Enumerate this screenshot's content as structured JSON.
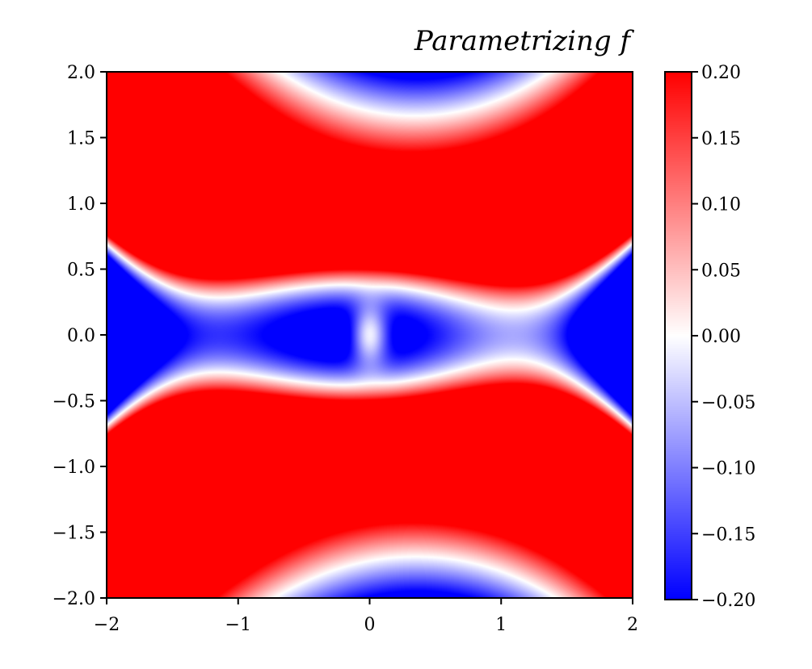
{
  "chart_data": {
    "type": "heatmap",
    "title": "Parametrizing f",
    "xlabel": "",
    "ylabel": "",
    "xlim": [
      -2,
      2
    ],
    "ylim": [
      -2,
      2
    ],
    "colormap": "bwr",
    "colors": {
      "low": "#0000ff",
      "mid": "#ffffff",
      "high": "#ff0000"
    },
    "color_range": [
      -0.2,
      0.2
    ],
    "grid": false,
    "x_ticks": [
      {
        "value": -2,
        "label": "−2"
      },
      {
        "value": -1,
        "label": "−1"
      },
      {
        "value": 0,
        "label": "0"
      },
      {
        "value": 1,
        "label": "1"
      },
      {
        "value": 2,
        "label": "2"
      }
    ],
    "y_ticks": [
      {
        "value": 2.0,
        "label": "2.0"
      },
      {
        "value": 1.5,
        "label": "1.5"
      },
      {
        "value": 1.0,
        "label": "1.0"
      },
      {
        "value": 0.5,
        "label": "0.5"
      },
      {
        "value": 0.0,
        "label": "0.0"
      },
      {
        "value": -0.5,
        "label": "−0.5"
      },
      {
        "value": -1.0,
        "label": "−1.0"
      },
      {
        "value": -1.5,
        "label": "−1.5"
      },
      {
        "value": -2.0,
        "label": "−2.0"
      }
    ],
    "colorbar_ticks": [
      {
        "value": 0.2,
        "label": "0.20"
      },
      {
        "value": 0.15,
        "label": "0.15"
      },
      {
        "value": 0.1,
        "label": "0.10"
      },
      {
        "value": 0.05,
        "label": "0.05"
      },
      {
        "value": 0.0,
        "label": "0.00"
      },
      {
        "value": -0.05,
        "label": "−0.05"
      },
      {
        "value": -0.1,
        "label": "−0.10"
      },
      {
        "value": -0.15,
        "label": "−0.15"
      },
      {
        "value": -0.2,
        "label": "−0.20"
      }
    ],
    "regions": [
      {
        "value_sign": "negative",
        "area": "two lobes centered near (−1, 0) and (1, 0), pinched at origin"
      },
      {
        "value_sign": "negative",
        "area": "top edge band centered near (0.3, 2)"
      },
      {
        "value_sign": "negative",
        "area": "bottom edge band centered near (0.3, −2)"
      },
      {
        "value_sign": "positive",
        "area": "remaining area"
      }
    ]
  }
}
